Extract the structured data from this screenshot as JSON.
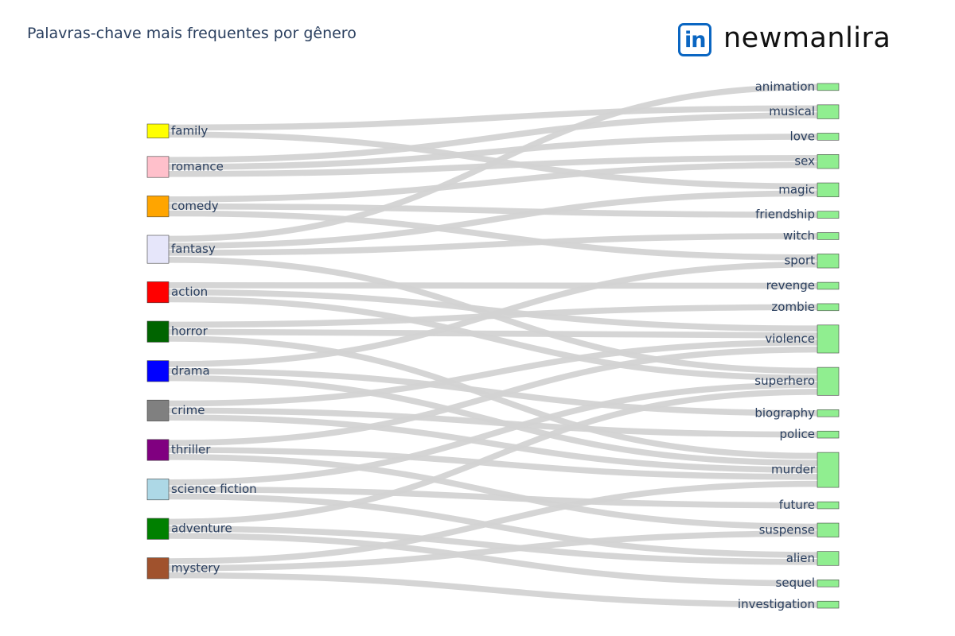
{
  "title": "Palavras-chave mais frequentes por gênero",
  "brand": {
    "logo_text": "in",
    "name": "newmanlira",
    "logo_color": "#0a66c2"
  },
  "colors": {
    "link": "#d3d3d3",
    "target_node": "#90ee90"
  },
  "chart_data": {
    "type": "sankey",
    "title": "Palavras-chave mais frequentes por gênero",
    "sources": [
      {
        "name": "family",
        "color": "#ffff00"
      },
      {
        "name": "romance",
        "color": "#ffc0cb"
      },
      {
        "name": "comedy",
        "color": "#ffa500"
      },
      {
        "name": "fantasy",
        "color": "#e6e6fa"
      },
      {
        "name": "action",
        "color": "#ff0000"
      },
      {
        "name": "horror",
        "color": "#006400"
      },
      {
        "name": "drama",
        "color": "#0000ff"
      },
      {
        "name": "crime",
        "color": "#808080"
      },
      {
        "name": "thriller",
        "color": "#800080"
      },
      {
        "name": "science fiction",
        "color": "#add8e6"
      },
      {
        "name": "adventure",
        "color": "#008000"
      },
      {
        "name": "mystery",
        "color": "#a0522d"
      }
    ],
    "targets": [
      "animation",
      "musical",
      "love",
      "sex",
      "magic",
      "friendship",
      "witch",
      "sport",
      "revenge",
      "zombie",
      "violence",
      "superhero",
      "biography",
      "police",
      "murder",
      "future",
      "suspense",
      "alien",
      "sequel",
      "investigation"
    ],
    "links": [
      {
        "source": "family",
        "target": "musical",
        "value": 1
      },
      {
        "source": "family",
        "target": "magic",
        "value": 1
      },
      {
        "source": "romance",
        "target": "musical",
        "value": 1
      },
      {
        "source": "romance",
        "target": "love",
        "value": 1
      },
      {
        "source": "romance",
        "target": "sex",
        "value": 1
      },
      {
        "source": "comedy",
        "target": "sex",
        "value": 1
      },
      {
        "source": "comedy",
        "target": "friendship",
        "value": 1
      },
      {
        "source": "comedy",
        "target": "sport",
        "value": 1
      },
      {
        "source": "fantasy",
        "target": "animation",
        "value": 1
      },
      {
        "source": "fantasy",
        "target": "magic",
        "value": 1
      },
      {
        "source": "fantasy",
        "target": "witch",
        "value": 1
      },
      {
        "source": "fantasy",
        "target": "superhero",
        "value": 1
      },
      {
        "source": "action",
        "target": "revenge",
        "value": 1
      },
      {
        "source": "action",
        "target": "violence",
        "value": 1
      },
      {
        "source": "action",
        "target": "superhero",
        "value": 1
      },
      {
        "source": "horror",
        "target": "zombie",
        "value": 1
      },
      {
        "source": "horror",
        "target": "violence",
        "value": 1
      },
      {
        "source": "horror",
        "target": "murder",
        "value": 1
      },
      {
        "source": "drama",
        "target": "sport",
        "value": 1
      },
      {
        "source": "drama",
        "target": "biography",
        "value": 1
      },
      {
        "source": "drama",
        "target": "murder",
        "value": 1
      },
      {
        "source": "crime",
        "target": "violence",
        "value": 1
      },
      {
        "source": "crime",
        "target": "police",
        "value": 1
      },
      {
        "source": "crime",
        "target": "murder",
        "value": 1
      },
      {
        "source": "thriller",
        "target": "murder",
        "value": 1
      },
      {
        "source": "thriller",
        "target": "suspense",
        "value": 1
      },
      {
        "source": "thriller",
        "target": "violence",
        "value": 1
      },
      {
        "source": "science fiction",
        "target": "superhero",
        "value": 1
      },
      {
        "source": "science fiction",
        "target": "future",
        "value": 1
      },
      {
        "source": "science fiction",
        "target": "alien",
        "value": 1
      },
      {
        "source": "adventure",
        "target": "superhero",
        "value": 1
      },
      {
        "source": "adventure",
        "target": "alien",
        "value": 1
      },
      {
        "source": "adventure",
        "target": "sequel",
        "value": 1
      },
      {
        "source": "mystery",
        "target": "murder",
        "value": 1
      },
      {
        "source": "mystery",
        "target": "suspense",
        "value": 1
      },
      {
        "source": "mystery",
        "target": "investigation",
        "value": 1
      }
    ]
  }
}
